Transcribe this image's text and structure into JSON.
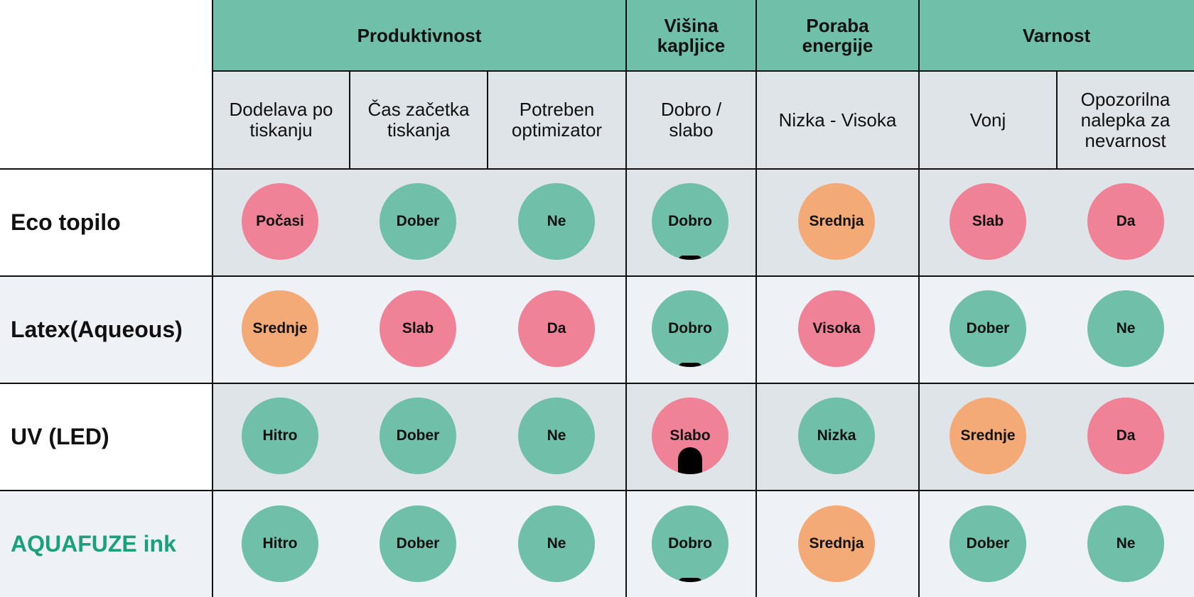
{
  "colors": {
    "green": "#70bfa9",
    "pink": "#ef8297",
    "orange": "#f4aa76",
    "header_gray": "#dfe4e9",
    "row_light": "#eef1f5",
    "brand": "#1aa07a"
  },
  "groups": [
    {
      "label": "Produktivnost"
    },
    {
      "label": "Višina kapljice"
    },
    {
      "label": "Poraba energije"
    },
    {
      "label": "Varnost"
    }
  ],
  "subheaders": [
    "Dodelava po tiskanju",
    "Čas začetka tiskanja",
    "Potreben optimizator",
    "Dobro / slabo",
    "Nizka - Visoka",
    "Vonj",
    "Opozorilna nalepka za nevarnost"
  ],
  "rows": [
    {
      "label": "Eco topilo",
      "cells": [
        {
          "text": "Počasi",
          "color": "pink"
        },
        {
          "text": "Dober",
          "color": "green"
        },
        {
          "text": "Ne",
          "color": "green"
        },
        {
          "text": "Dobro",
          "color": "green",
          "drop": "small"
        },
        {
          "text": "Srednja",
          "color": "orange"
        },
        {
          "text": "Slab",
          "color": "pink"
        },
        {
          "text": "Da",
          "color": "pink"
        }
      ]
    },
    {
      "label": "Latex(Aqueous)",
      "cells": [
        {
          "text": "Srednje",
          "color": "orange"
        },
        {
          "text": "Slab",
          "color": "pink"
        },
        {
          "text": "Da",
          "color": "pink"
        },
        {
          "text": "Dobro",
          "color": "green",
          "drop": "small"
        },
        {
          "text": "Visoka",
          "color": "pink"
        },
        {
          "text": "Dober",
          "color": "green"
        },
        {
          "text": "Ne",
          "color": "green"
        }
      ]
    },
    {
      "label": "UV (LED)",
      "cells": [
        {
          "text": "Hitro",
          "color": "green"
        },
        {
          "text": "Dober",
          "color": "green"
        },
        {
          "text": "Ne",
          "color": "green"
        },
        {
          "text": "Slabo",
          "color": "pink",
          "drop": "big"
        },
        {
          "text": "Nizka",
          "color": "green"
        },
        {
          "text": "Srednje",
          "color": "orange"
        },
        {
          "text": "Da",
          "color": "pink"
        }
      ]
    },
    {
      "label": "AQUAFUZE ink",
      "brand": true,
      "cells": [
        {
          "text": "Hitro",
          "color": "green"
        },
        {
          "text": "Dober",
          "color": "green"
        },
        {
          "text": "Ne",
          "color": "green"
        },
        {
          "text": "Dobro",
          "color": "green",
          "drop": "small"
        },
        {
          "text": "Srednja",
          "color": "orange"
        },
        {
          "text": "Dober",
          "color": "green"
        },
        {
          "text": "Ne",
          "color": "green"
        }
      ]
    }
  ]
}
